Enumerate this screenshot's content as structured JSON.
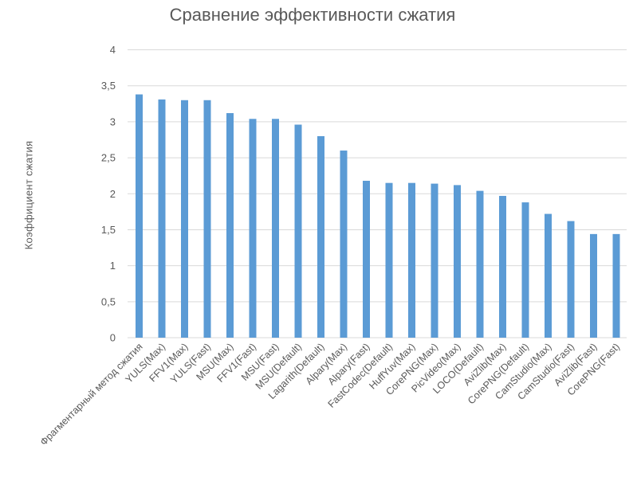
{
  "chart_data": {
    "type": "bar",
    "title": "Сравнение эффективности сжатия",
    "xlabel": "",
    "ylabel": "Коэффициент сжатия",
    "ylim": [
      0,
      4
    ],
    "yticks": [
      "0",
      "0,5",
      "1",
      "1,5",
      "2",
      "2,5",
      "3",
      "3,5",
      "4"
    ],
    "grid": true,
    "legend": null,
    "bar_color": "#5B9BD5",
    "categories": [
      "Фрагментарный метод сжатия",
      "YULS(Max)",
      "FFV1(Max)",
      "YULS(Fast)",
      "MSU(Max)",
      "FFV1(Fast)",
      "MSU(Fast)",
      "MSU(Default)",
      "Lagarith(Default)",
      "Alpary(Max)",
      "Alpary(Fast)",
      "FastCodec(Default)",
      "HuffYuv(Max)",
      "CorePNG(Max)",
      "PicVideo(Max)",
      "LOCO(Default)",
      "AviZlib(Max)",
      "CorePNG(Default)",
      "CamStudio(Max)",
      "CamStudio(Fast)",
      "AviZlib(Fast)",
      "CorePNG(Fast)"
    ],
    "values": [
      3.38,
      3.31,
      3.3,
      3.3,
      3.12,
      3.04,
      3.04,
      2.96,
      2.8,
      2.6,
      2.18,
      2.15,
      2.15,
      2.14,
      2.12,
      2.04,
      1.97,
      1.88,
      1.72,
      1.62,
      1.44,
      1.44
    ]
  }
}
